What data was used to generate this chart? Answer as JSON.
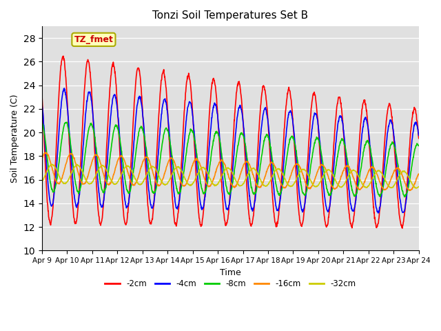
{
  "title": "Tonzi Soil Temperatures Set B",
  "xlabel": "Time",
  "ylabel": "Soil Temperature (C)",
  "ylim": [
    10,
    29
  ],
  "yticks": [
    10,
    12,
    14,
    16,
    18,
    20,
    22,
    24,
    26,
    28
  ],
  "annotation": "TZ_fmet",
  "colors": {
    "-2cm": "#ff0000",
    "-4cm": "#0000ff",
    "-8cm": "#00cc00",
    "-16cm": "#ff8800",
    "-32cm": "#cccc00"
  },
  "bg_color": "#e0e0e0",
  "line_width": 1.2,
  "n_days": 15,
  "pts_per_day": 96,
  "start_day": 9
}
